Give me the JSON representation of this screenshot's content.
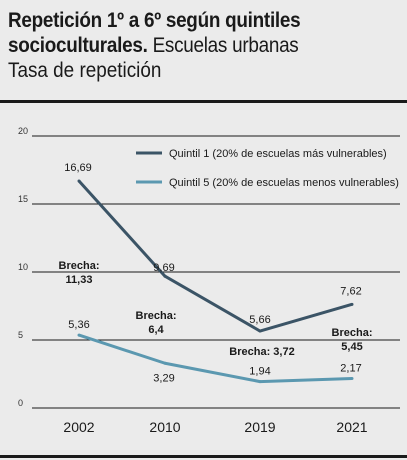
{
  "header": {
    "title_bold_1": "Repetición 1º a 6º según quintiles",
    "title_bold_2": "socioculturales.",
    "title_normal_2": " Escuelas urbanas",
    "subtitle": "Tasa de repetición"
  },
  "chart_data": {
    "type": "line",
    "categories": [
      "2002",
      "2010",
      "2019",
      "2021"
    ],
    "ylim": [
      0,
      20
    ],
    "yticks": [
      "0",
      "5",
      "10",
      "15",
      "20"
    ],
    "grid": "horizontal",
    "legend_position": "top-right",
    "series": [
      {
        "name": "Quintil 1 (20% de escuelas más vulnerables)",
        "values": [
          16.69,
          9.69,
          5.66,
          7.62
        ],
        "labels": [
          "16,69",
          "9,69",
          "5,66",
          "7,62"
        ],
        "color": "#3b5466"
      },
      {
        "name": "Quintil 5 (20% de escuelas menos vulnerables)",
        "values": [
          5.36,
          3.29,
          1.94,
          2.17
        ],
        "labels": [
          "5,36",
          "3,29",
          "1,94",
          "2,17"
        ],
        "color": "#5b98b0"
      }
    ],
    "gaps": [
      {
        "line1": "Brecha:",
        "line2": "11,33"
      },
      {
        "line1": "Brecha:",
        "line2": "6,4"
      },
      {
        "line1": "Brecha: 3,72",
        "line2": ""
      },
      {
        "line1": "Brecha:",
        "line2": "5,45"
      }
    ]
  }
}
